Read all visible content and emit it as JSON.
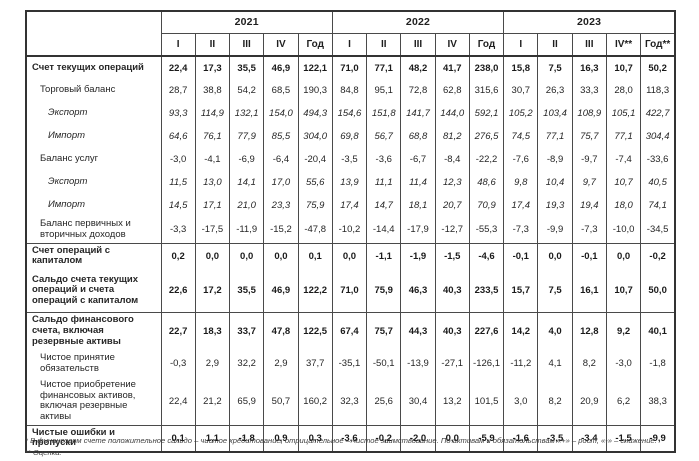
{
  "table": {
    "year_groups": [
      {
        "year": "2021",
        "quarters": [
          "I",
          "II",
          "III",
          "IV",
          "Год"
        ]
      },
      {
        "year": "2022",
        "quarters": [
          "I",
          "II",
          "III",
          "IV",
          "Год"
        ]
      },
      {
        "year": "2023",
        "quarters": [
          "I",
          "II",
          "III",
          "IV**",
          "Год**"
        ]
      }
    ],
    "rows": [
      {
        "label": "Счет текущих операций",
        "style": "bold",
        "indent": 0,
        "section_start": false,
        "values": [
          "22,4",
          "17,3",
          "35,5",
          "46,9",
          "122,1",
          "71,0",
          "77,1",
          "48,2",
          "41,7",
          "238,0",
          "15,8",
          "7,5",
          "16,3",
          "10,7",
          "50,2"
        ]
      },
      {
        "label": "Торговый баланс",
        "style": "regular",
        "indent": 1,
        "section_start": false,
        "values": [
          "28,7",
          "38,8",
          "54,2",
          "68,5",
          "190,3",
          "84,8",
          "95,1",
          "72,8",
          "62,8",
          "315,6",
          "30,7",
          "26,3",
          "33,3",
          "28,0",
          "118,3"
        ]
      },
      {
        "label": "Экспорт",
        "style": "italic",
        "indent": 2,
        "section_start": false,
        "values": [
          "93,3",
          "114,9",
          "132,1",
          "154,0",
          "494,3",
          "154,6",
          "151,8",
          "141,7",
          "144,0",
          "592,1",
          "105,2",
          "103,4",
          "108,9",
          "105,1",
          "422,7"
        ]
      },
      {
        "label": "Импорт",
        "style": "italic",
        "indent": 2,
        "section_start": false,
        "values": [
          "64,6",
          "76,1",
          "77,9",
          "85,5",
          "304,0",
          "69,8",
          "56,7",
          "68,8",
          "81,2",
          "276,5",
          "74,5",
          "77,1",
          "75,7",
          "77,1",
          "304,4"
        ]
      },
      {
        "label": "Баланс услуг",
        "style": "regular",
        "indent": 1,
        "section_start": false,
        "values": [
          "-3,0",
          "-4,1",
          "-6,9",
          "-6,4",
          "-20,4",
          "-3,5",
          "-3,6",
          "-6,7",
          "-8,4",
          "-22,2",
          "-7,6",
          "-8,9",
          "-9,7",
          "-7,4",
          "-33,6"
        ]
      },
      {
        "label": "Экспорт",
        "style": "italic",
        "indent": 2,
        "section_start": false,
        "values": [
          "11,5",
          "13,0",
          "14,1",
          "17,0",
          "55,6",
          "13,9",
          "11,1",
          "11,4",
          "12,3",
          "48,6",
          "9,8",
          "10,4",
          "9,7",
          "10,7",
          "40,5"
        ]
      },
      {
        "label": "Импорт",
        "style": "italic",
        "indent": 2,
        "section_start": false,
        "values": [
          "14,5",
          "17,1",
          "21,0",
          "23,3",
          "75,9",
          "17,4",
          "14,7",
          "18,1",
          "20,7",
          "70,9",
          "17,4",
          "19,3",
          "19,4",
          "18,0",
          "74,1"
        ]
      },
      {
        "label": "Баланс первичных и вторичных доходов",
        "style": "regular",
        "indent": 1,
        "section_start": false,
        "values": [
          "-3,3",
          "-17,5",
          "-11,9",
          "-15,2",
          "-47,8",
          "-10,2",
          "-14,4",
          "-17,9",
          "-12,7",
          "-55,3",
          "-7,3",
          "-9,9",
          "-7,3",
          "-10,0",
          "-34,5"
        ]
      },
      {
        "label": "Счет операций с капиталом",
        "style": "bold",
        "indent": 0,
        "section_start": true,
        "values": [
          "0,2",
          "0,0",
          "0,0",
          "0,0",
          "0,1",
          "0,0",
          "-1,1",
          "-1,9",
          "-1,5",
          "-4,6",
          "-0,1",
          "0,0",
          "-0,1",
          "0,0",
          "-0,2"
        ]
      },
      {
        "label": "Сальдо счета текущих операций и счета операций с капиталом",
        "style": "bold",
        "indent": 0,
        "section_start": false,
        "values": [
          "22,6",
          "17,2",
          "35,5",
          "46,9",
          "122,2",
          "71,0",
          "75,9",
          "46,3",
          "40,3",
          "233,5",
          "15,7",
          "7,5",
          "16,1",
          "10,7",
          "50,0"
        ]
      },
      {
        "label": "Сальдо финансового счета, включая резервные активы",
        "style": "bold",
        "indent": 0,
        "section_start": true,
        "values": [
          "22,7",
          "18,3",
          "33,7",
          "47,8",
          "122,5",
          "67,4",
          "75,7",
          "44,3",
          "40,3",
          "227,6",
          "14,2",
          "4,0",
          "12,8",
          "9,2",
          "40,1"
        ]
      },
      {
        "label": "Чистое принятие обязательств",
        "style": "regular",
        "indent": 1,
        "section_start": false,
        "values": [
          "-0,3",
          "2,9",
          "32,2",
          "2,9",
          "37,7",
          "-35,1",
          "-50,1",
          "-13,9",
          "-27,1",
          "-126,1",
          "-11,2",
          "4,1",
          "8,2",
          "-3,0",
          "-1,8"
        ]
      },
      {
        "label": "Чистое приобретение финансовых активов, включая резервные активы",
        "style": "regular",
        "indent": 1,
        "section_start": false,
        "values": [
          "22,4",
          "21,2",
          "65,9",
          "50,7",
          "160,2",
          "32,3",
          "25,6",
          "30,4",
          "13,2",
          "101,5",
          "3,0",
          "8,2",
          "20,9",
          "6,2",
          "38,3"
        ]
      },
      {
        "label": "Чистые ошибки и пропуски",
        "style": "bold",
        "indent": 0,
        "section_start": true,
        "values": [
          "0,1",
          "1,1",
          "-1,8",
          "0,9",
          "0,3",
          "-3,6",
          "-0,2",
          "-2,0",
          "0,0",
          "-5,9",
          "-1,6",
          "-3,5",
          "-3,4",
          "-1,5",
          "-9,9"
        ]
      }
    ]
  },
  "footnotes": [
    "* В финансовом счете положительное сальдо – чистое кредитование, отрицательное – чистое заимствование. По активам и обязательствам «+» – рост, «-» – снижение.",
    "** Оценка."
  ]
}
